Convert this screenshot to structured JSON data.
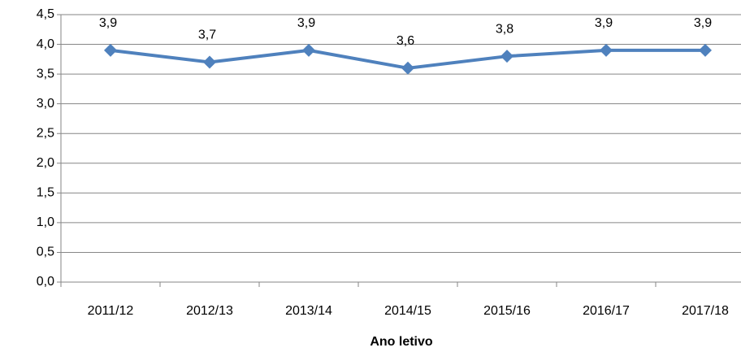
{
  "chart_data": {
    "type": "line",
    "x_label": "Ano letivo",
    "categories": [
      "2011/12",
      "2012/13",
      "2013/14",
      "2014/15",
      "2015/16",
      "2016/17",
      "2017/18"
    ],
    "values": [
      3.9,
      3.7,
      3.9,
      3.6,
      3.8,
      3.9,
      3.9
    ],
    "value_labels": [
      "3,9",
      "3,7",
      "3,9",
      "3,6",
      "3,8",
      "3,9",
      "3,9"
    ],
    "color": "#4f81bd",
    "ylim": [
      0,
      4.5
    ],
    "yticks": [
      {
        "value": 0,
        "label": "0,0"
      },
      {
        "value": 0.5,
        "label": "0,5"
      },
      {
        "value": 1,
        "label": "1,0"
      },
      {
        "value": 1.5,
        "label": "1,5"
      },
      {
        "value": 2,
        "label": "2,0"
      },
      {
        "value": 2.5,
        "label": "2,5"
      },
      {
        "value": 3,
        "label": "3,0"
      },
      {
        "value": 3.5,
        "label": "3,5"
      },
      {
        "value": 4,
        "label": "4,0"
      },
      {
        "value": 4.5,
        "label": "4,5"
      }
    ],
    "grid": true
  }
}
